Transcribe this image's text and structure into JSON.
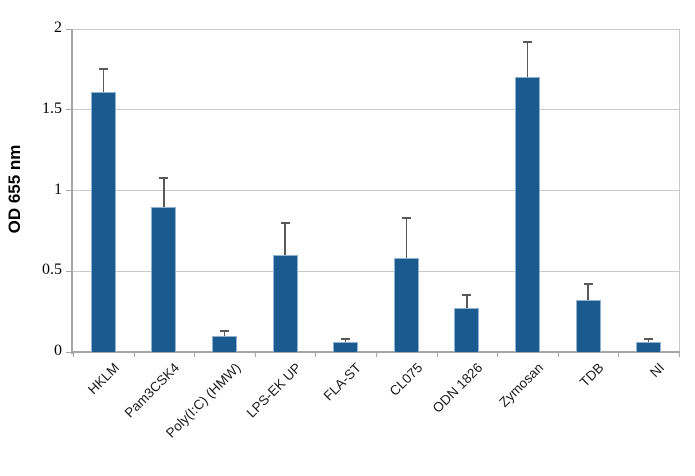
{
  "chart_data": {
    "type": "bar",
    "title": "",
    "ylabel": "OD 655 nm",
    "xlabel": "",
    "ylim": [
      0,
      2
    ],
    "ytick_step": 0.5,
    "yticks": [
      0,
      0.5,
      1,
      1.5,
      2
    ],
    "ytick_labels": [
      "0",
      "0.5",
      "1",
      "1.5",
      "2"
    ],
    "grid": "horizontal",
    "legend": "none",
    "categories": [
      "HKLM",
      "Pam3CSK4",
      "Poly(I:C) (HMW)",
      "LPS-EK UP",
      "FLA-ST",
      "CL075",
      "ODN 1826",
      "Zymosan",
      "TDB",
      "NI"
    ],
    "values": [
      1.61,
      0.9,
      0.1,
      0.6,
      0.06,
      0.58,
      0.27,
      1.7,
      0.32,
      0.06
    ],
    "errors_plus": [
      0.14,
      0.18,
      0.03,
      0.2,
      0.02,
      0.25,
      0.08,
      0.22,
      0.1,
      0.02
    ],
    "colors": {
      "bar_fill": "#1B5A8F",
      "bar_border": "#8FB2D1",
      "gridline": "#C9C9C9",
      "axis": "#A6A6A6",
      "error_bar": "#595959",
      "label_text": "#000000"
    }
  }
}
